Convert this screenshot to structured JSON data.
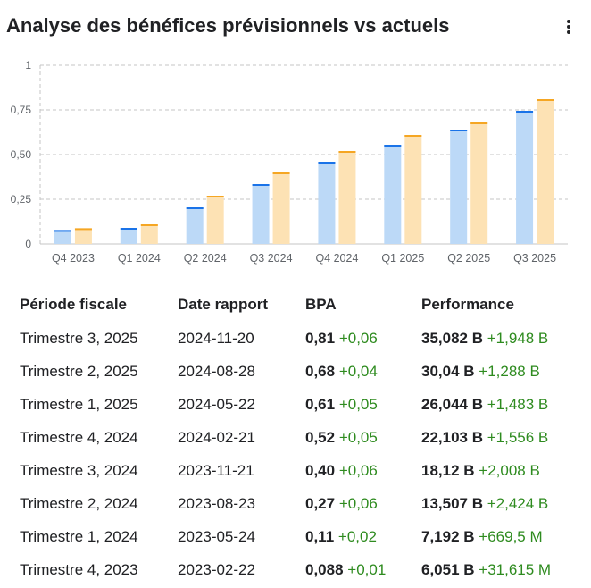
{
  "header": {
    "title": "Analyse des bénéfices prévisionnels vs actuels",
    "menu_icon": "more-vert-icon"
  },
  "colors": {
    "actual_fill": "#bcd9f7",
    "actual_cap": "#1a73e8",
    "forecast_fill": "#fde2b4",
    "forecast_cap": "#f5a623",
    "grid": "#c4c4c4",
    "axis_text": "#5f6368",
    "positive": "#2e8b1f"
  },
  "chart_data": {
    "type": "bar",
    "categories": [
      "Q4 2023",
      "Q1 2024",
      "Q2 2024",
      "Q3 2024",
      "Q4 2024",
      "Q1 2025",
      "Q2 2025",
      "Q3 2025"
    ],
    "series": [
      {
        "values": [
          0.078,
          0.09,
          0.205,
          0.335,
          0.46,
          0.555,
          0.64,
          0.745
        ]
      },
      {
        "values": [
          0.088,
          0.11,
          0.27,
          0.4,
          0.52,
          0.61,
          0.68,
          0.81
        ]
      }
    ],
    "ylim": [
      0,
      1
    ],
    "yticks": [
      "0",
      "0,25",
      "0,50",
      "0,75",
      "1"
    ],
    "ytick_values": [
      0,
      0.25,
      0.5,
      0.75,
      1
    ],
    "grid": true
  },
  "table": {
    "headers": [
      "Période fiscale",
      "Date rapport",
      "BPA",
      "Performance"
    ],
    "rows": [
      {
        "period": "Trimestre 3, 2025",
        "date": "2024-11-20",
        "eps": "0,81",
        "eps_delta": "+0,06",
        "perf": "35,082 B",
        "perf_delta": "+1,948 B"
      },
      {
        "period": "Trimestre 2, 2025",
        "date": "2024-08-28",
        "eps": "0,68",
        "eps_delta": "+0,04",
        "perf": "30,04 B",
        "perf_delta": "+1,288 B"
      },
      {
        "period": "Trimestre 1, 2025",
        "date": "2024-05-22",
        "eps": "0,61",
        "eps_delta": "+0,05",
        "perf": "26,044 B",
        "perf_delta": "+1,483 B"
      },
      {
        "period": "Trimestre 4, 2024",
        "date": "2024-02-21",
        "eps": "0,52",
        "eps_delta": "+0,05",
        "perf": "22,103 B",
        "perf_delta": "+1,556 B"
      },
      {
        "period": "Trimestre 3, 2024",
        "date": "2023-11-21",
        "eps": "0,40",
        "eps_delta": "+0,06",
        "perf": "18,12 B",
        "perf_delta": "+2,008 B"
      },
      {
        "period": "Trimestre 2, 2024",
        "date": "2023-08-23",
        "eps": "0,27",
        "eps_delta": "+0,06",
        "perf": "13,507 B",
        "perf_delta": "+2,424 B"
      },
      {
        "period": "Trimestre 1, 2024",
        "date": "2023-05-24",
        "eps": "0,11",
        "eps_delta": "+0,02",
        "perf": "7,192 B",
        "perf_delta": "+669,5 M"
      },
      {
        "period": "Trimestre 4, 2023",
        "date": "2023-02-22",
        "eps": "0,088",
        "eps_delta": "+0,01",
        "perf": "6,051 B",
        "perf_delta": "+31,615 M"
      }
    ]
  }
}
